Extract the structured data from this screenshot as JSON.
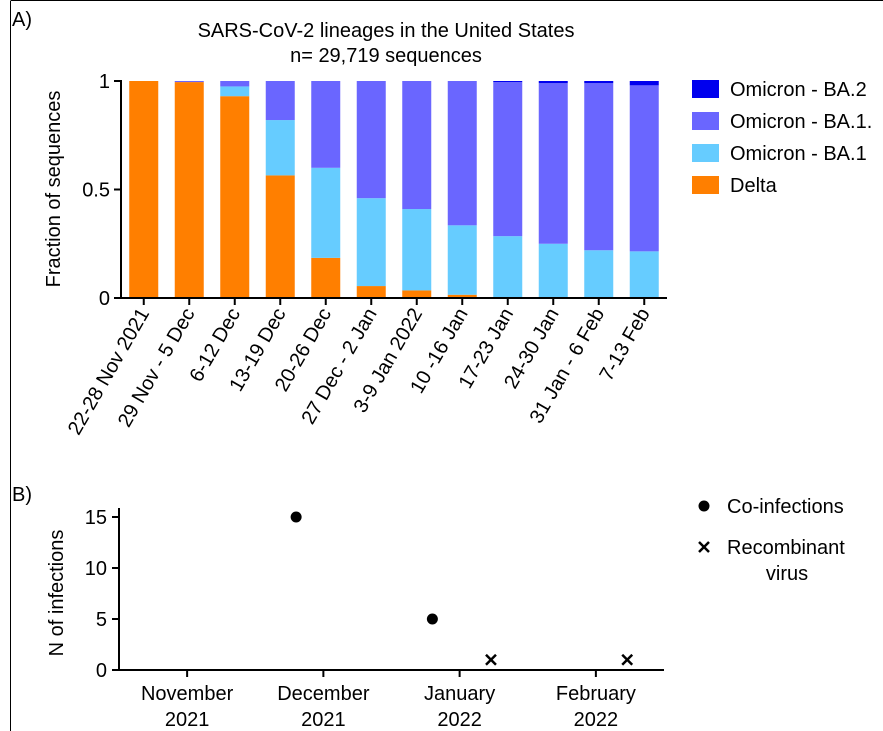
{
  "panel_a": {
    "label": "A)",
    "chart_data": {
      "type": "bar",
      "stacked": true,
      "title": "SARS-CoV-2 lineages in the United States",
      "subtitle": "n= 29,719 sequences",
      "ylabel": "Fraction of sequences",
      "xlabel": "",
      "ylim": [
        0,
        1
      ],
      "yticks": [
        {
          "value": 0,
          "label": "0"
        },
        {
          "value": 0.5,
          "label": "0.5"
        },
        {
          "value": 1,
          "label": "1"
        }
      ],
      "grid": false,
      "legend_position": "right",
      "categories": [
        "22-28 Nov 2021",
        "29 Nov - 5 Dec",
        "6-12 Dec",
        "13-19 Dec",
        "20-26 Dec",
        "27 Dec - 2 Jan",
        "3-9 Jan 2022",
        "10 -16 Jan",
        "17-23 Jan",
        "24-30 Jan",
        "31 Jan - 6 Feb",
        "7-13 Feb"
      ],
      "series": [
        {
          "name": "Delta",
          "color": "#ff7f00",
          "values": [
            1.0,
            0.995,
            0.93,
            0.565,
            0.185,
            0.055,
            0.035,
            0.015,
            0.0,
            0.0,
            0.0,
            0.0
          ]
        },
        {
          "name": "Omicron - BA.1",
          "color": "#66ccff",
          "values": [
            0.0,
            0.0,
            0.045,
            0.255,
            0.415,
            0.405,
            0.375,
            0.32,
            0.285,
            0.25,
            0.22,
            0.215
          ]
        },
        {
          "name": "Omicron - BA.1.",
          "color": "#6a66ff",
          "values": [
            0.0,
            0.005,
            0.025,
            0.18,
            0.4,
            0.54,
            0.59,
            0.665,
            0.71,
            0.74,
            0.77,
            0.765
          ]
        },
        {
          "name": "Omicron - BA.2",
          "color": "#0000ee",
          "values": [
            0.0,
            0.0,
            0.0,
            0.0,
            0.0,
            0.0,
            0.0,
            0.0,
            0.005,
            0.01,
            0.01,
            0.02
          ]
        }
      ],
      "legend_order": [
        "Omicron - BA.2",
        "Omicron - BA.1.",
        "Omicron - BA.1",
        "Delta"
      ]
    }
  },
  "panel_b": {
    "label": "B)",
    "chart_data": {
      "type": "scatter",
      "ylabel": "N of infections",
      "xlabel": "",
      "ylim": [
        0,
        15
      ],
      "yticks": [
        {
          "value": 0,
          "label": "0"
        },
        {
          "value": 5,
          "label": "5"
        },
        {
          "value": 10,
          "label": "10"
        },
        {
          "value": 15,
          "label": "15"
        }
      ],
      "xlim": [
        0,
        4
      ],
      "x_categories": [
        {
          "pos": 0.5,
          "line1": "November",
          "line2": "2021"
        },
        {
          "pos": 1.5,
          "line1": "December",
          "line2": "2021"
        },
        {
          "pos": 2.5,
          "line1": "January",
          "line2": "2022"
        },
        {
          "pos": 3.5,
          "line1": "February",
          "line2": "2022"
        }
      ],
      "grid": false,
      "legend_position": "right",
      "series": [
        {
          "name": "Co-infections",
          "marker": "circle",
          "color": "#000000",
          "points": [
            {
              "x": 1.3,
              "y": 15
            },
            {
              "x": 2.3,
              "y": 5
            }
          ]
        },
        {
          "name": "Recombinant virus",
          "legend_line1": "Recombinant",
          "legend_line2": "virus",
          "marker": "cross",
          "color": "#000000",
          "points": [
            {
              "x": 2.73,
              "y": 1
            },
            {
              "x": 3.73,
              "y": 1
            }
          ]
        }
      ]
    }
  }
}
